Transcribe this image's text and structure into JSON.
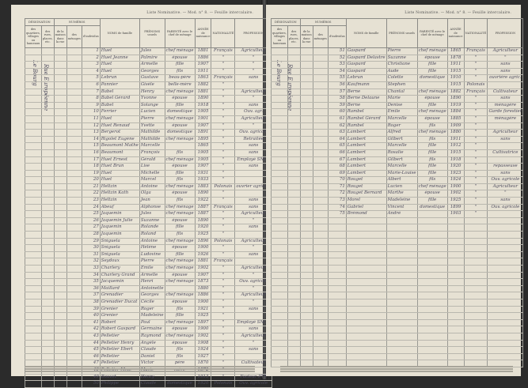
{
  "left": {
    "running_head": "Liste Nominative. — Mod. n° 8. — Feuille intercalaire.",
    "street": "Rue Européenne",
    "locality": "Le Bourg",
    "rows": [
      [
        "1",
        "Huet",
        "Jules",
        "chef ménage",
        "1881",
        "Français",
        "Agriculteur"
      ],
      [
        "2",
        "Huet Jeanne",
        "Palmire",
        "épouse",
        "1886",
        "\"",
        "\""
      ],
      [
        "3",
        "Huet",
        "Armelle",
        "fille",
        "1907",
        "\"",
        "\""
      ],
      [
        "4",
        "Huet",
        "Georges",
        "fils",
        "1911",
        "\"",
        "\""
      ],
      [
        "5",
        "Lebrun",
        "Gustave",
        "beau-père",
        "1863",
        "Français",
        "sans"
      ],
      [
        "6",
        "Pannier",
        "Gisèle",
        "belle-mère",
        "1882",
        "\"",
        ""
      ],
      [
        "7",
        "Babel",
        "Henry",
        "chef ménage",
        "1881",
        "\"",
        "Agriculteur"
      ],
      [
        "8",
        "Babel Gérard",
        "Yvonne",
        "épouse",
        "1890",
        "\"",
        "\""
      ],
      [
        "9",
        "Babel",
        "Solange",
        "fille",
        "1918",
        "\"",
        "sans"
      ],
      [
        "10",
        "Ferrier",
        "Lucien",
        "domestique",
        "1905",
        "\"",
        "Ouv. agr."
      ],
      [
        "11",
        "Huet",
        "Pierre",
        "chef ménage",
        "1901",
        "\"",
        "Agriculteur"
      ],
      [
        "12",
        "Huet Renaud",
        "Yvette",
        "épouse",
        "1907",
        "\"",
        "\""
      ],
      [
        "13",
        "Bergerot",
        "Mathilde",
        "domestique",
        "1891",
        "\"",
        "Ouv. agricole"
      ],
      [
        "14",
        "Rigolet Eugène",
        "Mathilde",
        "chef ménage",
        "1895",
        "\"",
        "Retraitée"
      ],
      [
        "15",
        "Beaumont Mathe",
        "Marcelle",
        "",
        "1865",
        "\"",
        "sans"
      ],
      [
        "16",
        "Beaumont",
        "François",
        "fils",
        "1905",
        "\"",
        "sans"
      ],
      [
        "17",
        "Huet Ernest",
        "Gérald",
        "chef ménage",
        "1905",
        "\"",
        "Employé SNCF"
      ],
      [
        "18",
        "Huet Brun",
        "Lise",
        "épouse",
        "1907",
        "\"",
        "sans"
      ],
      [
        "19",
        "Huet",
        "Michelle",
        "fille",
        "1931",
        "\"",
        ""
      ],
      [
        "20",
        "Huet",
        "Marcel",
        "fils",
        "1933",
        "\"",
        ""
      ],
      [
        "21",
        "Heltzin",
        "Antoine",
        "chef ménage",
        "1883",
        "Polonais",
        "ouvrier agricole"
      ],
      [
        "22",
        "Heltzin Kath",
        "Olga",
        "épouse",
        "1890",
        "\"",
        ""
      ],
      [
        "23",
        "Heltzin",
        "Jean",
        "fils",
        "1922",
        "\"",
        "sans"
      ],
      [
        "24",
        "Abeuf",
        "Alphonse",
        "chef ménage",
        "1887",
        "Français",
        "sans"
      ],
      [
        "25",
        "Jaquemin",
        "Jules",
        "chef ménage",
        "1887",
        "\"",
        "Agriculteur"
      ],
      [
        "26",
        "Jaquemin Julie",
        "Suzanne",
        "épouse",
        "1890",
        "\"",
        "\""
      ],
      [
        "27",
        "Jaquemin",
        "Rolande",
        "fille",
        "1920",
        "\"",
        "sans"
      ],
      [
        "28",
        "Jaquemin",
        "Roland",
        "fils",
        "1925",
        "\"",
        ""
      ],
      [
        "29",
        "Sniguela",
        "Antoine",
        "chef ménage",
        "1896",
        "Polonais",
        "Agriculteur"
      ],
      [
        "30",
        "Sniguela",
        "Hélène",
        "épouse",
        "1900",
        "\"",
        "\""
      ],
      [
        "31",
        "Sniguela",
        "Ludovine",
        "fille",
        "1926",
        "\"",
        "sans"
      ],
      [
        "32",
        "Seydoux",
        "Pierre",
        "chef ménage",
        "1881",
        "Français",
        ""
      ],
      [
        "33",
        "Charlery",
        "Émile",
        "chef ménage",
        "1902",
        "\"",
        "Agriculteur"
      ],
      [
        "34",
        "Charlery Grand",
        "Armelle",
        "épouse",
        "1907",
        "\"",
        "\""
      ],
      [
        "35",
        "Jacquemin",
        "Henri",
        "chef ménage",
        "1873",
        "\"",
        "Ouv. agricole"
      ],
      [
        "36",
        "Maillard",
        "Antoinette",
        "",
        "1880",
        "\"",
        "\""
      ],
      [
        "37",
        "Grenadier",
        "Georges",
        "chef ménage",
        "1886",
        "\"",
        "Agriculteur"
      ],
      [
        "38",
        "Grenadier Ducat",
        "Cécile",
        "épouse",
        "1900",
        "\"",
        "\""
      ],
      [
        "39",
        "Grenier",
        "Roger",
        "fils",
        "1921",
        "\"",
        "sans"
      ],
      [
        "40",
        "Grenier",
        "Madeleine",
        "fille",
        "1925",
        "\"",
        ""
      ],
      [
        "41",
        "Robert",
        "Paul",
        "chef ménage",
        "1897",
        "\"",
        "Employé SNCF"
      ],
      [
        "42",
        "Robert Gaspard",
        "Germaine",
        "épouse",
        "1900",
        "\"",
        "sans"
      ],
      [
        "43",
        "Pelletier",
        "Raymond",
        "chef ménage",
        "1902",
        "\"",
        "Agriculteur"
      ],
      [
        "44",
        "Pelletier Henry",
        "Angèle",
        "épouse",
        "1908",
        "\"",
        "\""
      ],
      [
        "45",
        "Pelletier Ebert",
        "Claude",
        "fils",
        "1924",
        "\"",
        "sans"
      ],
      [
        "46",
        "Pelletier",
        "Daniel",
        "fils",
        "1927",
        "\"",
        ""
      ],
      [
        "47",
        "Pelletier",
        "Victor",
        "père",
        "1870",
        "\"",
        "Cultivateur"
      ],
      [
        "48",
        "Pelletier Mme",
        "Marie",
        "mère",
        "1872",
        "\"",
        ""
      ],
      [
        "49",
        "Bouvet",
        "Henry",
        "",
        "1913",
        "\"",
        "Facteur PTT"
      ],
      [
        "50",
        "Philippe",
        "Claude",
        "domestique",
        "1920",
        "Polonais",
        "Ouv. agricole"
      ]
    ]
  },
  "right": {
    "running_head": "Liste Nominative. — Mod. n° 8. — Feuille intercalaire.",
    "street": "Rue Européenne",
    "locality": "Le Bourg",
    "rows": [
      [
        "51",
        "Gaspard",
        "Pierre",
        "chef ménage",
        "1865",
        "Français",
        "Agriculteur"
      ],
      [
        "52",
        "Gaspard Delastre",
        "Suzanne",
        "épouse",
        "1878",
        "\"",
        "\""
      ],
      [
        "53",
        "Gaspard",
        "Christiane",
        "fille",
        "1911",
        "\"",
        "sans"
      ],
      [
        "54",
        "Gaspard",
        "Aude",
        "fille",
        "1915",
        "\"",
        "sans"
      ],
      [
        "55",
        "Lebrun",
        "Colette",
        "domestique",
        "1910",
        "\"",
        "ouvrière agric."
      ],
      [
        "56",
        "Kaufmann",
        "Stephen",
        "",
        "1915",
        "Polonais",
        ""
      ],
      [
        "57",
        "Berne",
        "Chantal",
        "chef ménage",
        "1882",
        "Français",
        "Cultivateur"
      ],
      [
        "58",
        "Berne Delaune",
        "Marie",
        "épouse",
        "1890",
        "\"",
        "sans"
      ],
      [
        "59",
        "Berne",
        "Denise",
        "fille",
        "1919",
        "\"",
        "ménagère"
      ],
      [
        "60",
        "Rambel",
        "Émile",
        "chef ménage",
        "1884",
        "\"",
        "Garde forestier"
      ],
      [
        "61",
        "Rambel Gérard",
        "Marcelle",
        "épouse",
        "1885",
        "\"",
        "ménagère"
      ],
      [
        "62",
        "Rambel",
        "Roger",
        "fils",
        "1909",
        "\"",
        ""
      ],
      [
        "63",
        "Lambert",
        "Alfred",
        "chef ménage",
        "1880",
        "\"",
        "Agriculteur"
      ],
      [
        "64",
        "Lambert",
        "Gilbert",
        "fils",
        "1911",
        "\"",
        "sans"
      ],
      [
        "65",
        "Lambert",
        "Marcelle",
        "fille",
        "1912",
        "\"",
        ""
      ],
      [
        "66",
        "Lambert",
        "Rosalie",
        "fille",
        "1915",
        "\"",
        "Cultivatrice"
      ],
      [
        "67",
        "Lambert",
        "Gilbert",
        "fils",
        "1918",
        "\"",
        ""
      ],
      [
        "68",
        "Lambert",
        "Marcelle",
        "fille",
        "1920",
        "\"",
        "repasseuse"
      ],
      [
        "69",
        "Lambert",
        "Marie-Louise",
        "fille",
        "1923",
        "\"",
        "sans"
      ],
      [
        "70",
        "Rouget",
        "Albert",
        "fils",
        "1924",
        "\"",
        "Ouv. agricole"
      ],
      [
        "71",
        "Rouget",
        "Lucien",
        "chef ménage",
        "1900",
        "\"",
        "Agriculteur"
      ],
      [
        "72",
        "Rouget Bernard",
        "Marthe",
        "épouse",
        "1902",
        "\"",
        "\""
      ],
      [
        "73",
        "Morel",
        "Madeleine",
        "fille",
        "1925",
        "\"",
        "sans"
      ],
      [
        "74",
        "Gabriel",
        "Vincent",
        "domestique",
        "1899",
        "\"",
        "Ouv. agricole"
      ],
      [
        "75",
        "Brémond",
        "André",
        "",
        "1903",
        "\"",
        ""
      ]
    ],
    "empty_rows": 22
  },
  "columns": {
    "designation": "DÉSIGNATION",
    "des_quartiers": "des quartiers, villages ou hameaux",
    "des_rues": "des rues, places, etc.",
    "numeros": "NUMÉROS",
    "maison": "de la maison dans la rue",
    "menages": "des ménages",
    "individus": "d'individus",
    "noms": "NOMS de famille",
    "prenoms": "PRÉNOMS usuels",
    "parente": "PARENTÉ avec le chef de ménage",
    "annee": "ANNÉE de naissance",
    "nationalite": "NATIONALITÉ",
    "profession": "PROFESSION"
  }
}
